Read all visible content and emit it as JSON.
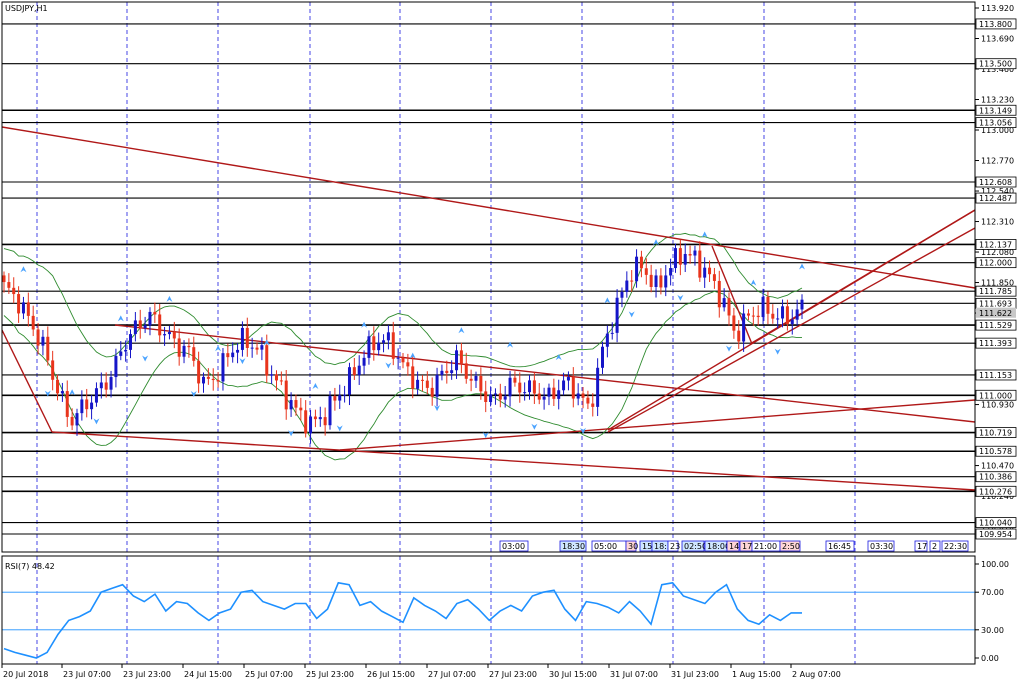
{
  "symbol_label": "USDJPY,H1",
  "rsi_label": "RSI(7) 48.42",
  "colors": {
    "up": "#1515c8",
    "down": "#e8341c",
    "grid": "#1a1ae0",
    "trend": "#b01818",
    "bands": "#2e8b2e",
    "rsi": "#1e90ff",
    "level": "#000000",
    "frame": "#000000"
  },
  "chart_data": [
    {
      "type": "candlestick",
      "title": "USDJPY,H1",
      "ylim": [
        109.954,
        113.92
      ],
      "y_ticks": [
        "113.920",
        "113.690",
        "113.460",
        "113.230",
        "113.000",
        "112.770",
        "112.540",
        "112.310",
        "112.080",
        "111.850",
        "111.620",
        "111.390",
        "111.160",
        "110.930",
        "110.700",
        "110.470",
        "110.240",
        "110.010"
      ],
      "x_labels": [
        "20 Jul 2018",
        "23 Jul 07:00",
        "23 Jul 23:00",
        "24 Jul 15:00",
        "25 Jul 07:00",
        "25 Jul 23:00",
        "26 Jul 15:00",
        "27 Jul 07:00",
        "27 Jul 23:00",
        "30 Jul 15:00",
        "31 Jul 07:00",
        "31 Jul 23:00",
        "1 Aug 15:00",
        "2 Aug 07:00"
      ],
      "horizontal_levels": [
        "113.800",
        "113.500",
        "113.149",
        "113.056",
        "112.608",
        "112.487",
        "112.137",
        "112.000",
        "111.785",
        "111.693",
        "111.529",
        "111.393",
        "111.153",
        "111.000",
        "110.719",
        "110.578",
        "110.386",
        "110.276",
        "110.040",
        "109.954"
      ],
      "price_marker": "111.622",
      "time_boxes": [
        "03:00",
        "18:30",
        "05:00",
        "30",
        "15",
        "18:3",
        "23",
        "02:50",
        "18:00",
        "14",
        "17:",
        "21:00",
        "2:50",
        "16:45",
        "03:30",
        "17",
        "2",
        "22:30"
      ],
      "close_path": [
        111.82,
        111.72,
        111.55,
        111.35,
        111.05,
        110.8,
        110.92,
        111.02,
        111.14,
        111.38,
        111.52,
        111.6,
        111.48,
        111.38,
        111.32,
        111.08,
        111.15,
        111.33,
        111.42,
        111.36,
        111.18,
        111.02,
        110.88,
        110.78,
        110.84,
        110.98,
        111.12,
        111.3,
        111.42,
        111.4,
        111.22,
        111.1,
        111.04,
        111.16,
        111.28,
        111.14,
        111.02,
        110.96,
        111.08,
        111.06,
        111.02,
        110.98,
        111.1,
        111.04,
        110.88,
        111.34,
        111.64,
        111.92,
        111.98,
        111.8,
        111.96,
        112.08,
        112.02,
        111.9,
        111.72,
        111.45,
        111.6,
        111.66,
        111.6,
        111.58,
        111.66
      ],
      "trend_lines": "see chart"
    },
    {
      "type": "line",
      "title": "RSI(7) 48.42",
      "ylim": [
        0,
        100
      ],
      "y_ticks": [
        "100.00",
        "70.00",
        "30.00",
        "0.00"
      ],
      "levels": [
        70,
        30
      ],
      "values": [
        10,
        6,
        3,
        0,
        6,
        25,
        40,
        44,
        50,
        70,
        74,
        78,
        66,
        60,
        68,
        50,
        60,
        58,
        48,
        40,
        48,
        52,
        70,
        72,
        60,
        56,
        52,
        58,
        58,
        42,
        52,
        80,
        78,
        56,
        60,
        50,
        44,
        38,
        64,
        56,
        50,
        42,
        58,
        62,
        52,
        40,
        50,
        56,
        50,
        66,
        70,
        72,
        52,
        40,
        60,
        58,
        54,
        48,
        60,
        50,
        36,
        78,
        80,
        66,
        62,
        58,
        70,
        78,
        52,
        40,
        36,
        46,
        40,
        48,
        48
      ]
    }
  ]
}
